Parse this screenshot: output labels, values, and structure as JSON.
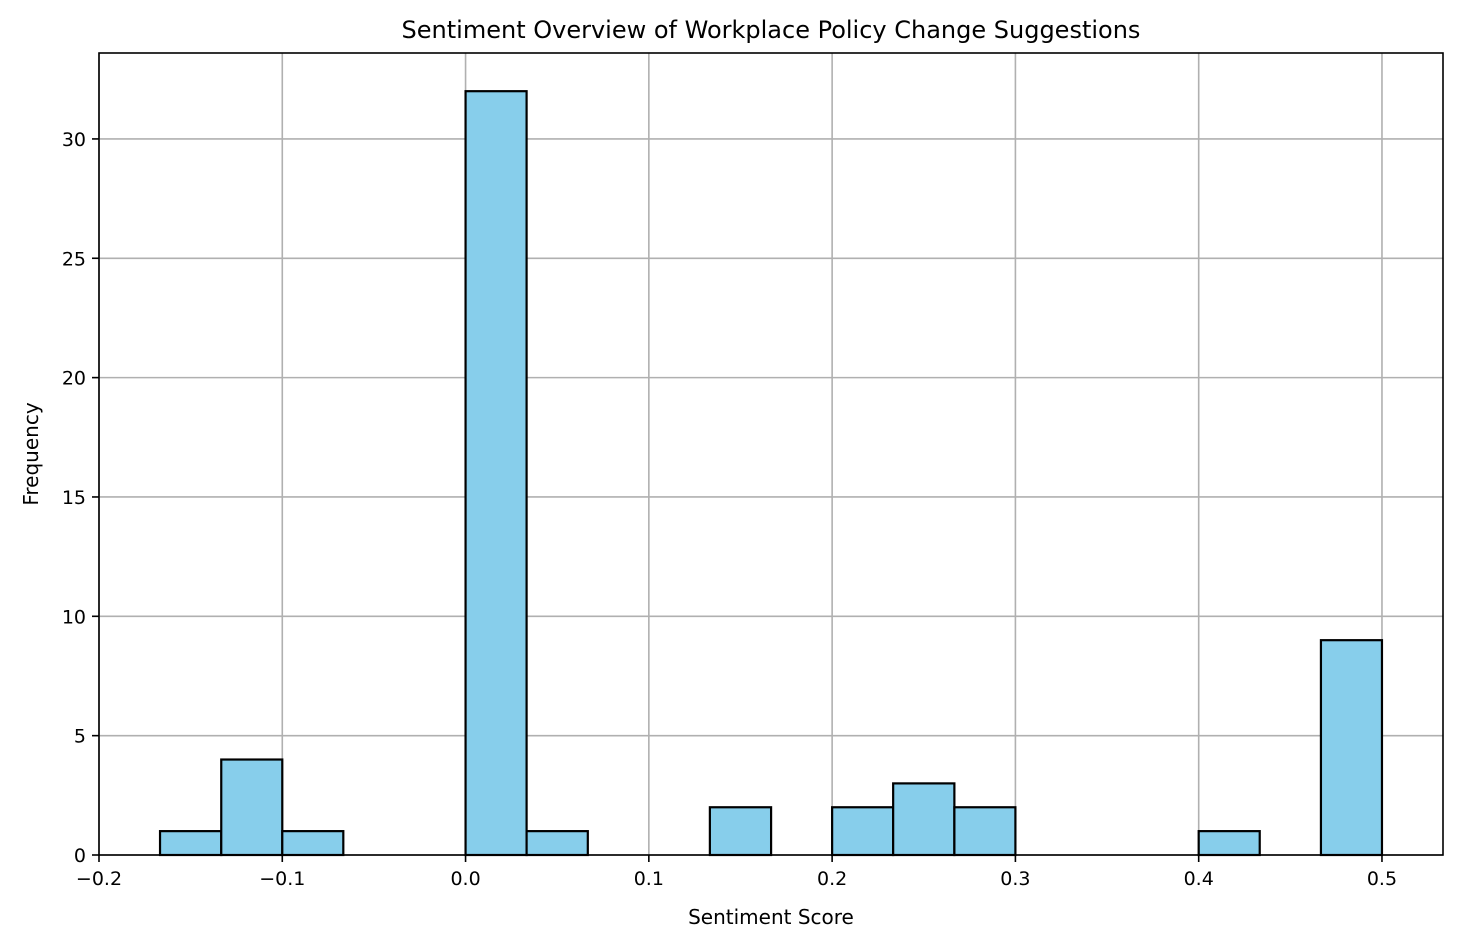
{
  "chart_data": {
    "type": "bar",
    "subtype": "histogram",
    "title": "Sentiment Overview of Workplace Policy Change Suggestions",
    "xlabel": "Sentiment Score",
    "ylabel": "Frequency",
    "xlim": [
      -0.2,
      0.5333
    ],
    "ylim": [
      0,
      33.6
    ],
    "x_ticks": [
      -0.2,
      -0.1,
      0.0,
      0.1,
      0.2,
      0.3,
      0.4,
      0.5
    ],
    "x_tick_labels": [
      "−0.2",
      "−0.1",
      "0.0",
      "0.1",
      "0.2",
      "0.3",
      "0.4",
      "0.5"
    ],
    "y_ticks": [
      0,
      5,
      10,
      15,
      20,
      25,
      30
    ],
    "y_tick_labels": [
      "0",
      "5",
      "10",
      "15",
      "20",
      "25",
      "30"
    ],
    "grid": true,
    "bar_color": "#87CEEB",
    "edge_color": "#000000",
    "bins": [
      {
        "start": -0.1667,
        "end": -0.1333,
        "count": 1
      },
      {
        "start": -0.1333,
        "end": -0.1,
        "count": 4
      },
      {
        "start": -0.1,
        "end": -0.0667,
        "count": 1
      },
      {
        "start": -0.0667,
        "end": -0.0333,
        "count": 0
      },
      {
        "start": -0.0333,
        "end": 0.0,
        "count": 0
      },
      {
        "start": 0.0,
        "end": 0.0333,
        "count": 32
      },
      {
        "start": 0.0333,
        "end": 0.0667,
        "count": 1
      },
      {
        "start": 0.0667,
        "end": 0.1,
        "count": 0
      },
      {
        "start": 0.1,
        "end": 0.1333,
        "count": 0
      },
      {
        "start": 0.1333,
        "end": 0.1667,
        "count": 2
      },
      {
        "start": 0.1667,
        "end": 0.2,
        "count": 0
      },
      {
        "start": 0.2,
        "end": 0.2333,
        "count": 2
      },
      {
        "start": 0.2333,
        "end": 0.2667,
        "count": 3
      },
      {
        "start": 0.2667,
        "end": 0.3,
        "count": 2
      },
      {
        "start": 0.3,
        "end": 0.3333,
        "count": 0
      },
      {
        "start": 0.3333,
        "end": 0.3667,
        "count": 0
      },
      {
        "start": 0.3667,
        "end": 0.4,
        "count": 0
      },
      {
        "start": 0.4,
        "end": 0.4333,
        "count": 1
      },
      {
        "start": 0.4333,
        "end": 0.4667,
        "count": 0
      },
      {
        "start": 0.4667,
        "end": 0.5,
        "count": 9
      }
    ]
  }
}
